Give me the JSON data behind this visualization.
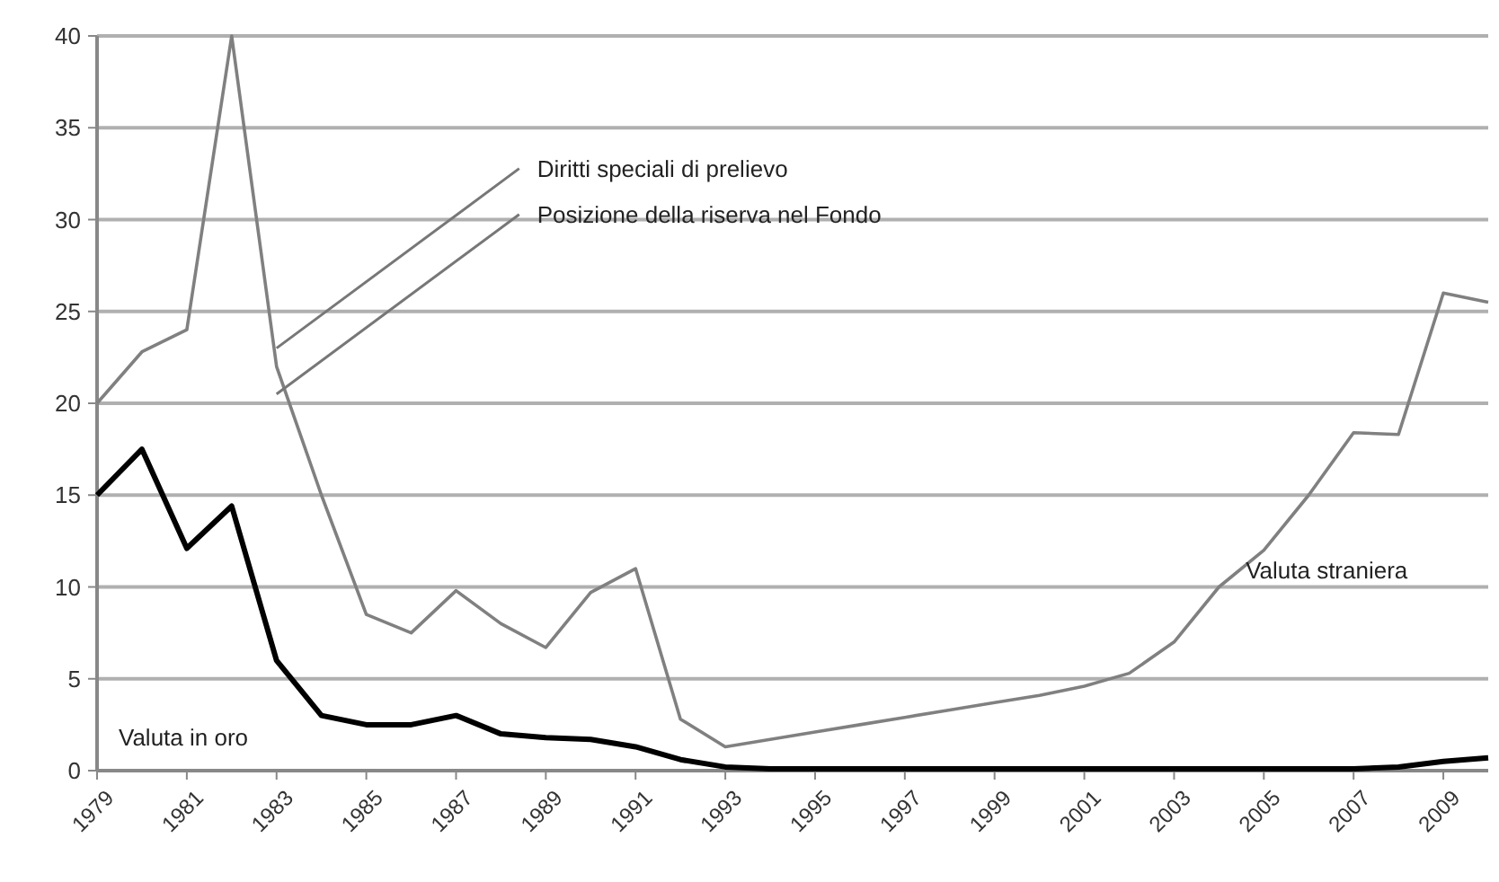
{
  "chart_data": {
    "type": "line",
    "x": [
      1979,
      1980,
      1981,
      1982,
      1983,
      1984,
      1985,
      1986,
      1987,
      1988,
      1989,
      1990,
      1991,
      1992,
      1993,
      1994,
      1995,
      1996,
      1997,
      1998,
      1999,
      2000,
      2001,
      2002,
      2003,
      2004,
      2005,
      2006,
      2007,
      2008,
      2009,
      2010
    ],
    "series": [
      {
        "name": "Valuta straniera",
        "color": "#808080",
        "values": [
          20,
          22.8,
          24,
          40,
          22,
          15,
          8.5,
          7.5,
          9.8,
          8,
          6.7,
          9.7,
          11,
          2.8,
          1.3,
          1.7,
          2.1,
          2.5,
          2.9,
          3.3,
          3.7,
          4.1,
          4.6,
          5.3,
          7,
          10,
          12,
          15,
          18.4,
          18.3,
          26,
          25.5
        ]
      },
      {
        "name": "Valuta in oro",
        "color": "#000000",
        "values": [
          15,
          17.5,
          12.1,
          14.4,
          6,
          3,
          2.5,
          2.5,
          3,
          2,
          1.8,
          1.7,
          1.3,
          0.6,
          0.2,
          0.1,
          0.1,
          0.1,
          0.1,
          0.1,
          0.1,
          0.1,
          0.1,
          0.1,
          0.1,
          0.1,
          0.1,
          0.1,
          0.1,
          0.2,
          0.5,
          0.7
        ]
      }
    ],
    "annotations": [
      {
        "text": "Diritti speciali di prelievo",
        "x": 1983,
        "y": 23
      },
      {
        "text": "Posizione della riserva nel Fondo",
        "x": 1983,
        "y": 20.5
      }
    ],
    "xlim": [
      1979,
      2010
    ],
    "xticks": [
      1979,
      1981,
      1983,
      1985,
      1987,
      1989,
      1991,
      1993,
      1995,
      1997,
      1999,
      2001,
      2003,
      2005,
      2007,
      2009
    ],
    "ylim": [
      0,
      40
    ],
    "yticks": [
      0,
      5,
      10,
      15,
      20,
      25,
      30,
      35,
      40
    ],
    "grid": "y",
    "legend": false,
    "marker": "none",
    "line_style": "solid"
  }
}
